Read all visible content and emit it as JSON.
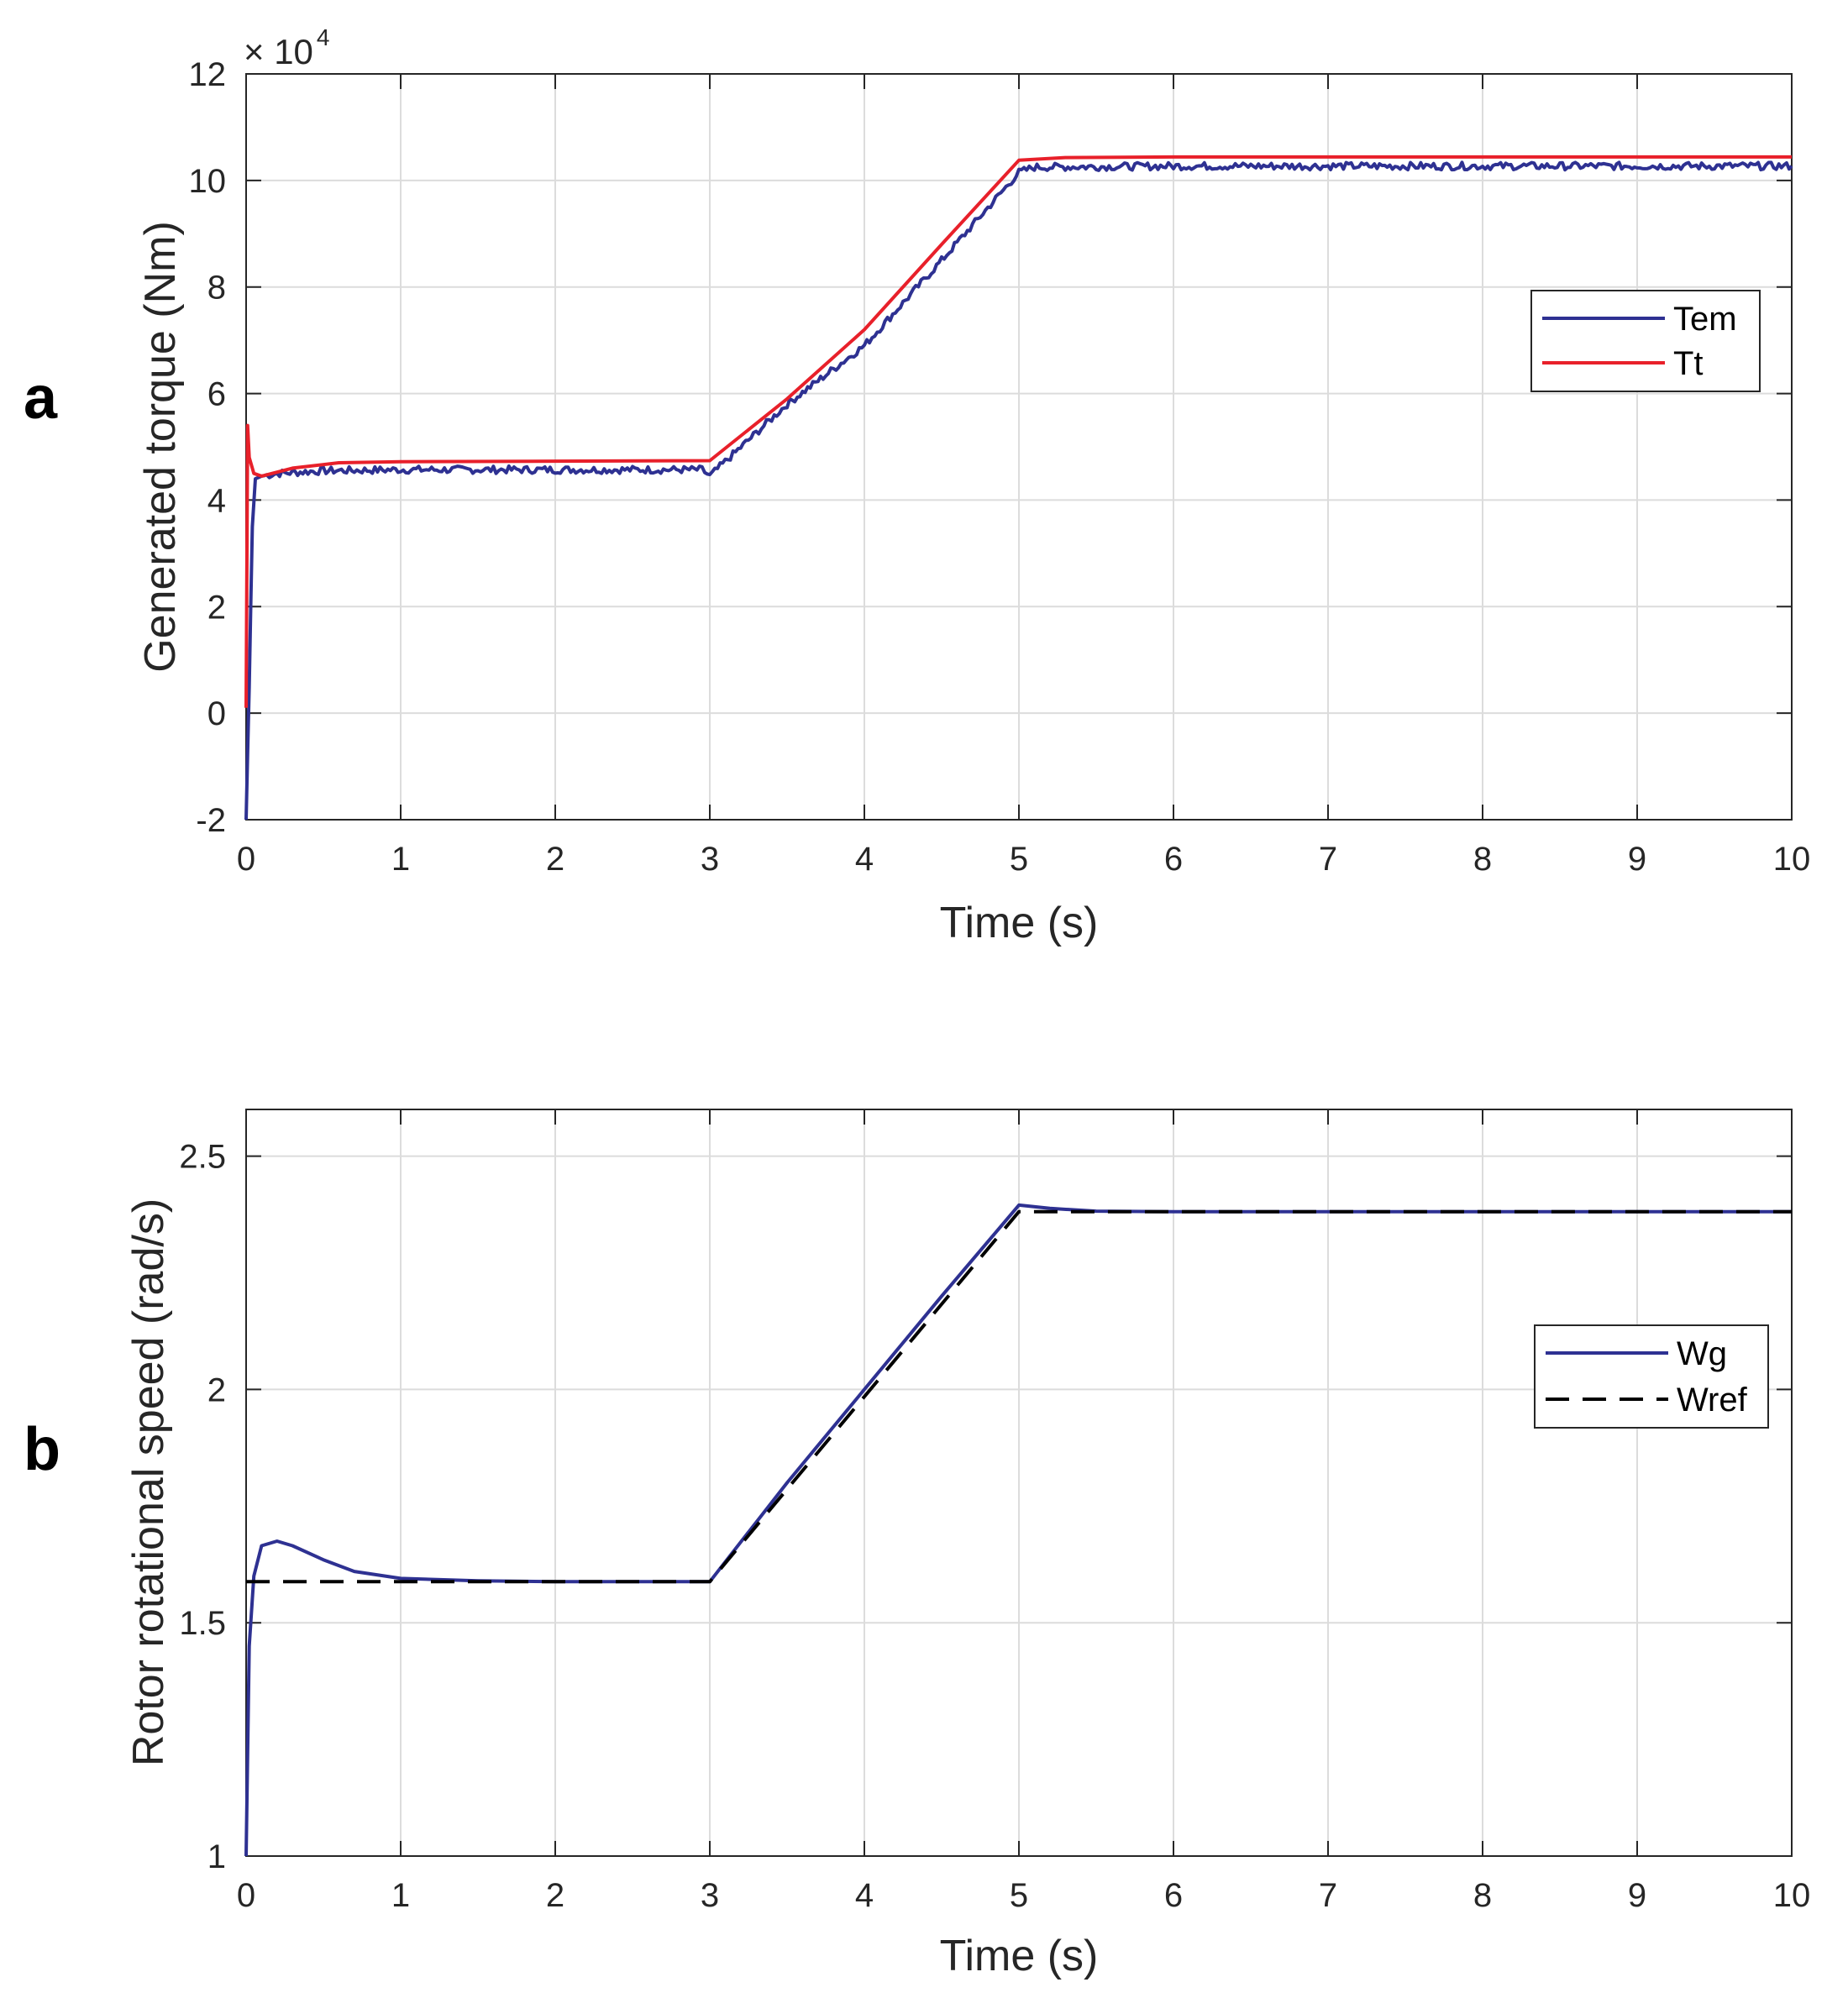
{
  "chart_data": [
    {
      "type": "line",
      "panel_label": "a",
      "title": "",
      "xlabel": "Time (s)",
      "ylabel": "Generated torque (Nm)",
      "xlim": [
        0,
        10
      ],
      "ylim": [
        -2,
        12
      ],
      "y_exponent_label": "× 10",
      "y_exponent_power": "4",
      "x_ticks": [
        "0",
        "1",
        "2",
        "3",
        "4",
        "5",
        "6",
        "7",
        "8",
        "9",
        "10"
      ],
      "y_ticks": [
        "-2",
        "0",
        "2",
        "4",
        "6",
        "8",
        "10",
        "12"
      ],
      "x_tick_values": [
        0,
        1,
        2,
        3,
        4,
        5,
        6,
        7,
        8,
        9,
        10
      ],
      "y_tick_values": [
        -2,
        0,
        2,
        4,
        6,
        8,
        10,
        12
      ],
      "grid": true,
      "legend_position": "center-right",
      "series": [
        {
          "name": "Tem",
          "color": "#2E3192",
          "dash": "solid",
          "noise": 0.07,
          "x": [
            0,
            0.02,
            0.04,
            0.06,
            0.1,
            0.2,
            0.5,
            1,
            2,
            2.95,
            3,
            3.5,
            4,
            4.5,
            5,
            5.1,
            6,
            7,
            8,
            9,
            10
          ],
          "y": [
            -2,
            0.5,
            3.5,
            4.4,
            4.45,
            4.5,
            4.55,
            4.57,
            4.57,
            4.57,
            4.45,
            5.8,
            6.9,
            8.5,
            10.15,
            10.25,
            10.27,
            10.27,
            10.27,
            10.27,
            10.27
          ]
        },
        {
          "name": "Tt",
          "color": "#E8202A",
          "dash": "solid",
          "noise": 0,
          "x": [
            0,
            0.01,
            0.02,
            0.05,
            0.1,
            0.3,
            0.6,
            1,
            2,
            3,
            3.5,
            4,
            4.5,
            5,
            5.3,
            6,
            7,
            8,
            9,
            10
          ],
          "y": [
            0.1,
            5.4,
            4.8,
            4.5,
            4.45,
            4.6,
            4.7,
            4.72,
            4.73,
            4.74,
            5.9,
            7.2,
            8.8,
            10.38,
            10.43,
            10.44,
            10.44,
            10.44,
            10.44,
            10.44
          ]
        }
      ]
    },
    {
      "type": "line",
      "panel_label": "b",
      "title": "",
      "xlabel": "Time (s)",
      "ylabel": "Rotor rotational speed (rad/s)",
      "xlim": [
        0,
        10
      ],
      "ylim": [
        1,
        2.6
      ],
      "x_ticks": [
        "0",
        "1",
        "2",
        "3",
        "4",
        "5",
        "6",
        "7",
        "8",
        "9",
        "10"
      ],
      "y_ticks": [
        "1",
        "1.5",
        "2",
        "2.5"
      ],
      "x_tick_values": [
        0,
        1,
        2,
        3,
        4,
        5,
        6,
        7,
        8,
        9,
        10
      ],
      "y_tick_values": [
        1,
        1.5,
        2,
        2.5
      ],
      "grid": true,
      "legend_position": "center-right",
      "series": [
        {
          "name": "Wg",
          "color": "#2E3192",
          "dash": "solid",
          "noise": 0,
          "x": [
            0,
            0.02,
            0.05,
            0.1,
            0.2,
            0.3,
            0.5,
            0.7,
            1,
            1.5,
            2,
            3,
            3.5,
            4,
            4.5,
            5,
            5.2,
            5.5,
            6,
            7,
            8,
            9,
            10
          ],
          "y": [
            1,
            1.45,
            1.6,
            1.665,
            1.675,
            1.665,
            1.635,
            1.61,
            1.595,
            1.59,
            1.588,
            1.588,
            1.8,
            2.0,
            2.2,
            2.395,
            2.388,
            2.382,
            2.381,
            2.381,
            2.381,
            2.381,
            2.381
          ]
        },
        {
          "name": "Wref",
          "color": "#000000",
          "dash": "dashed",
          "noise": 0,
          "x": [
            0,
            3,
            5,
            10
          ],
          "y": [
            1.588,
            1.588,
            2.381,
            2.381
          ]
        }
      ]
    }
  ]
}
